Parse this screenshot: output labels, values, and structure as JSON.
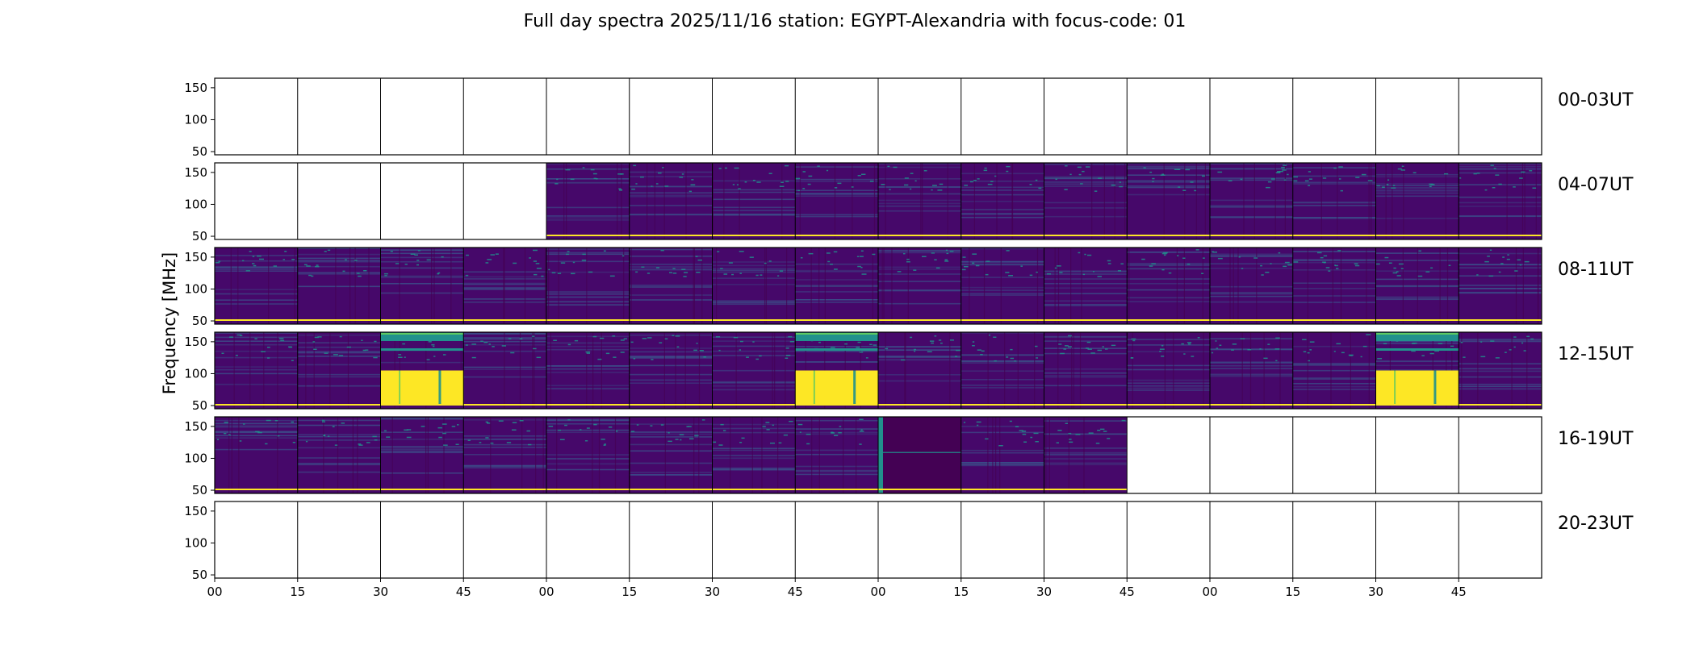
{
  "chart_data": {
    "type": "heatmap",
    "title": "Full day spectra 2025/11/16 station: EGYPT-Alexandria with focus-code: 01",
    "ylabel": "Frequency [MHz]",
    "xlabel": "",
    "ylim": [
      45,
      165
    ],
    "ytick_labels": [
      "50",
      "100",
      "150"
    ],
    "ytick_values": [
      50,
      100,
      150
    ],
    "xtick_labels": [
      "00",
      "15",
      "30",
      "45",
      "00",
      "15",
      "30",
      "45",
      "00",
      "15",
      "30",
      "45",
      "00",
      "15",
      "30",
      "45"
    ],
    "colormap": "viridis",
    "colors": {
      "dark": "#440154",
      "base": "#46086a",
      "mid": "#3b528b",
      "teal": "#21918c",
      "green": "#5ec962",
      "yellow": "#fde725"
    },
    "rows": [
      {
        "label": "00-03UT",
        "panels": [
          "empty",
          "empty",
          "empty",
          "empty",
          "empty",
          "empty",
          "empty",
          "empty",
          "empty",
          "empty",
          "empty",
          "empty",
          "empty",
          "empty",
          "empty",
          "empty"
        ]
      },
      {
        "label": "04-07UT",
        "panels": [
          "empty",
          "empty",
          "empty",
          "empty",
          "data",
          "data",
          "data",
          "data",
          "data",
          "data",
          "data",
          "data",
          "data",
          "data",
          "data",
          "data"
        ]
      },
      {
        "label": "08-11UT",
        "panels": [
          "data",
          "data",
          "data",
          "data",
          "data",
          "data",
          "data",
          "data",
          "data",
          "data",
          "data",
          "data",
          "data",
          "data",
          "data",
          "data"
        ]
      },
      {
        "label": "12-15UT",
        "panels": [
          "data",
          "data",
          "burst",
          "data",
          "data",
          "data",
          "data",
          "burst",
          "data",
          "data",
          "data",
          "data",
          "data",
          "data",
          "burst",
          "data"
        ]
      },
      {
        "label": "16-19UT",
        "panels": [
          "data",
          "data",
          "data",
          "data",
          "data",
          "data",
          "data",
          "data",
          "flat",
          "data",
          "data",
          "empty",
          "empty",
          "empty",
          "empty",
          "empty"
        ]
      },
      {
        "label": "20-23UT",
        "panels": [
          "empty",
          "empty",
          "empty",
          "empty",
          "empty",
          "empty",
          "empty",
          "empty",
          "empty",
          "empty",
          "empty",
          "empty",
          "empty",
          "empty",
          "empty",
          "empty"
        ]
      }
    ]
  }
}
